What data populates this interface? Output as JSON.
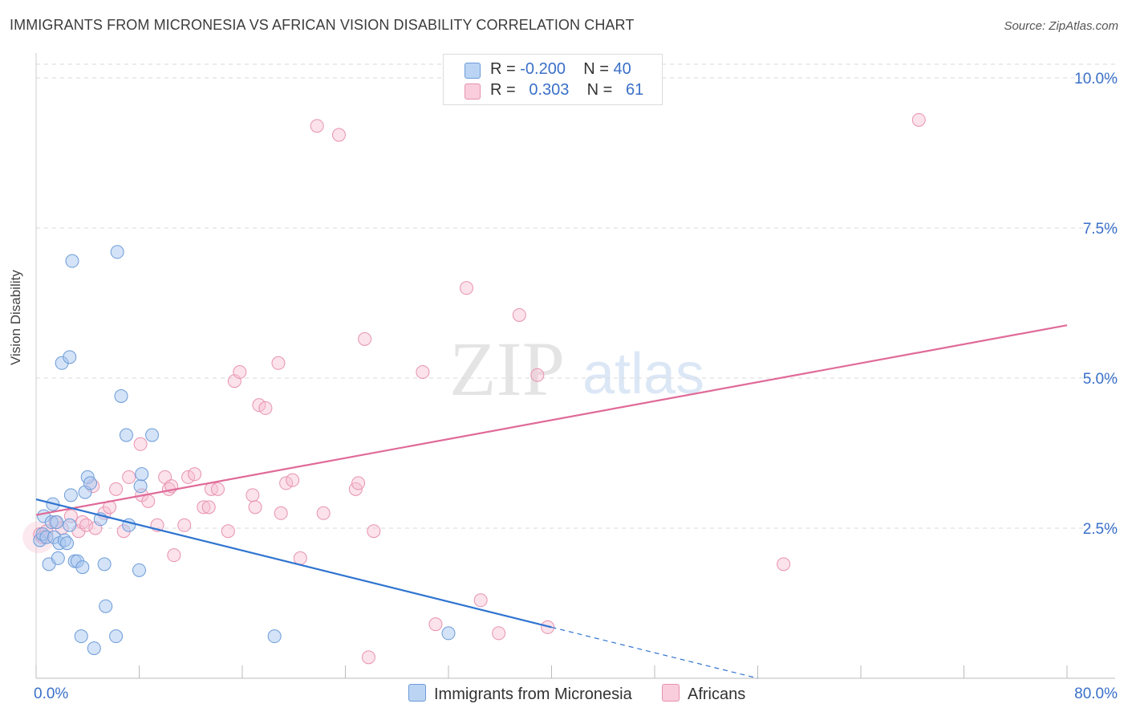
{
  "title": "IMMIGRANTS FROM MICRONESIA VS AFRICAN VISION DISABILITY CORRELATION CHART",
  "source": "Source: ZipAtlas.com",
  "watermark": {
    "zip": "ZIP",
    "atlas": "atlas"
  },
  "legend": {
    "rows": [
      {
        "r_label": "R =",
        "r_value": "-0.200",
        "n_label": "N =",
        "n_value": "40"
      },
      {
        "r_label": "R =",
        "r_value": "0.303",
        "n_label": "N =",
        "n_value": "61"
      }
    ]
  },
  "colors": {
    "blue_fill": "#a9c8f0",
    "blue_stroke": "#6b9bd8",
    "blue_line": "#2f74d0",
    "pink_fill": "#f7bfd2",
    "pink_stroke": "#e892b0",
    "pink_line": "#e06a98",
    "tick_label": "#3a70c8",
    "grid": "#d8d8d8"
  },
  "chart_data": {
    "type": "scatter",
    "title": "IMMIGRANTS FROM MICRONESIA VS AFRICAN VISION DISABILITY CORRELATION CHART",
    "xlabel": "",
    "ylabel": "Vision Disability",
    "xlim": [
      0,
      80
    ],
    "ylim": [
      0,
      10.5
    ],
    "x_tick_labels": [
      "0.0%",
      "80.0%"
    ],
    "y_ticks": [
      2.5,
      5.0,
      7.5,
      10.0
    ],
    "y_tick_labels": [
      "2.5%",
      "5.0%",
      "7.5%",
      "10.0%"
    ],
    "series": [
      {
        "name": "Immigrants from Micronesia",
        "color": "blue",
        "r": -0.2,
        "n": 40,
        "trend": {
          "x": [
            0,
            40
          ],
          "y": [
            2.98,
            0.85
          ],
          "dashed_to": [
            56,
            0.0
          ]
        },
        "points": [
          [
            0.3,
            2.3
          ],
          [
            0.5,
            2.4
          ],
          [
            0.6,
            2.7
          ],
          [
            0.8,
            2.35
          ],
          [
            1.0,
            1.9
          ],
          [
            1.2,
            2.6
          ],
          [
            1.3,
            2.9
          ],
          [
            1.4,
            2.35
          ],
          [
            1.6,
            2.6
          ],
          [
            1.7,
            2.0
          ],
          [
            1.8,
            2.25
          ],
          [
            2.0,
            5.25
          ],
          [
            2.2,
            2.3
          ],
          [
            2.4,
            2.25
          ],
          [
            2.6,
            5.35
          ],
          [
            2.7,
            3.05
          ],
          [
            2.8,
            6.95
          ],
          [
            3.0,
            1.95
          ],
          [
            3.2,
            1.95
          ],
          [
            3.5,
            0.7
          ],
          [
            3.6,
            1.85
          ],
          [
            3.8,
            3.1
          ],
          [
            4.0,
            3.35
          ],
          [
            4.2,
            3.25
          ],
          [
            4.5,
            0.5
          ],
          [
            5.0,
            2.65
          ],
          [
            5.3,
            1.9
          ],
          [
            5.4,
            1.2
          ],
          [
            6.2,
            0.7
          ],
          [
            6.3,
            7.1
          ],
          [
            6.6,
            4.7
          ],
          [
            7.0,
            4.05
          ],
          [
            7.2,
            2.55
          ],
          [
            8.0,
            1.8
          ],
          [
            8.1,
            3.2
          ],
          [
            8.2,
            3.4
          ],
          [
            9.0,
            4.05
          ],
          [
            18.5,
            0.7
          ],
          [
            32.0,
            0.75
          ],
          [
            2.6,
            2.55
          ]
        ]
      },
      {
        "name": "Africans",
        "color": "pink",
        "r": 0.303,
        "n": 61,
        "trend": {
          "x": [
            0,
            80
          ],
          "y": [
            2.72,
            5.88
          ]
        },
        "points": [
          [
            0.3,
            2.4
          ],
          [
            0.5,
            2.35
          ],
          [
            0.8,
            2.45
          ],
          [
            1.5,
            2.6
          ],
          [
            2.0,
            2.5
          ],
          [
            2.7,
            2.7
          ],
          [
            3.3,
            2.45
          ],
          [
            3.6,
            2.6
          ],
          [
            3.9,
            2.55
          ],
          [
            4.4,
            3.2
          ],
          [
            4.6,
            2.5
          ],
          [
            5.3,
            2.75
          ],
          [
            5.7,
            2.85
          ],
          [
            6.2,
            3.15
          ],
          [
            6.8,
            2.45
          ],
          [
            7.2,
            3.35
          ],
          [
            8.1,
            3.9
          ],
          [
            8.2,
            3.05
          ],
          [
            8.7,
            2.95
          ],
          [
            9.4,
            2.55
          ],
          [
            10.0,
            3.35
          ],
          [
            10.3,
            3.15
          ],
          [
            10.7,
            2.05
          ],
          [
            11.5,
            2.55
          ],
          [
            11.8,
            3.35
          ],
          [
            12.3,
            3.4
          ],
          [
            13.0,
            2.85
          ],
          [
            13.4,
            2.85
          ],
          [
            13.6,
            3.15
          ],
          [
            14.1,
            3.15
          ],
          [
            14.9,
            2.45
          ],
          [
            15.4,
            4.95
          ],
          [
            15.8,
            5.1
          ],
          [
            16.8,
            3.05
          ],
          [
            17.0,
            2.85
          ],
          [
            17.3,
            4.55
          ],
          [
            17.8,
            4.5
          ],
          [
            18.8,
            5.25
          ],
          [
            19.0,
            2.75
          ],
          [
            19.4,
            3.25
          ],
          [
            19.9,
            3.3
          ],
          [
            20.5,
            2.0
          ],
          [
            21.8,
            9.2
          ],
          [
            22.3,
            2.75
          ],
          [
            23.5,
            9.05
          ],
          [
            24.8,
            3.15
          ],
          [
            25.0,
            3.25
          ],
          [
            25.5,
            5.65
          ],
          [
            26.2,
            2.45
          ],
          [
            25.8,
            0.35
          ],
          [
            30.0,
            5.1
          ],
          [
            31.0,
            0.9
          ],
          [
            33.4,
            6.5
          ],
          [
            34.5,
            1.3
          ],
          [
            35.9,
            0.75
          ],
          [
            37.5,
            6.05
          ],
          [
            38.9,
            5.05
          ],
          [
            39.7,
            0.85
          ],
          [
            58.0,
            1.9
          ],
          [
            68.5,
            9.3
          ],
          [
            10.5,
            3.2
          ]
        ]
      }
    ]
  }
}
